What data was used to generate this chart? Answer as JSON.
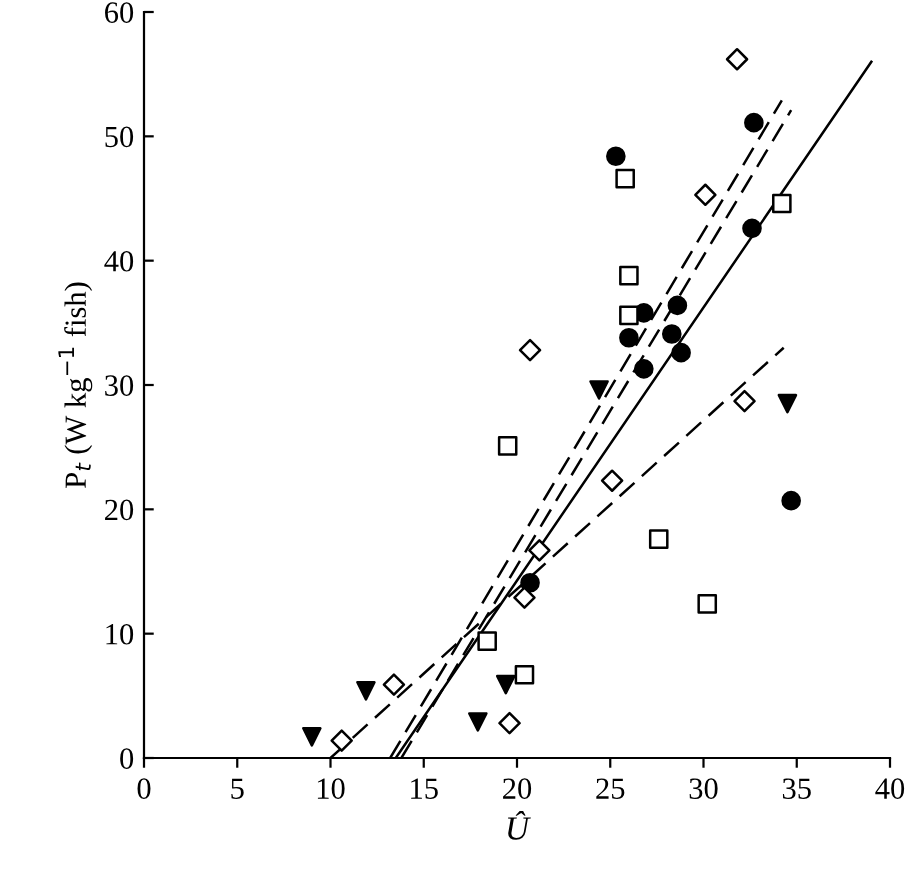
{
  "chart_data": {
    "type": "scatter",
    "xlabel": "Û",
    "ylabel": "P$_{t}$ (W kg$^{−1}$ fish)",
    "xlim": [
      0,
      40
    ],
    "ylim": [
      0,
      60
    ],
    "xticks": [
      0,
      5,
      10,
      15,
      20,
      25,
      30,
      35,
      40
    ],
    "yticks": [
      0,
      10,
      20,
      30,
      40,
      50,
      60
    ],
    "grid": false,
    "legend": false,
    "series": [
      {
        "marker": "circle",
        "color": "#000000",
        "x": [
          32.7,
          25.3,
          32.6,
          26.8,
          28.6,
          26.0,
          28.3,
          28.8,
          26.8,
          34.7,
          20.7
        ],
        "values": [
          51.1,
          48.4,
          42.6,
          35.8,
          36.4,
          33.8,
          34.1,
          32.6,
          31.3,
          20.7,
          14.1
        ]
      },
      {
        "marker": "square",
        "color": "#000000",
        "x": [
          25.8,
          34.2,
          26.0,
          26.0,
          19.5,
          27.6,
          30.2,
          18.4,
          20.4
        ],
        "values": [
          46.6,
          44.6,
          38.8,
          35.6,
          25.1,
          17.6,
          12.4,
          9.4,
          6.7
        ]
      },
      {
        "marker": "diamond",
        "color": "#000000",
        "x": [
          31.8,
          30.1,
          20.7,
          32.2,
          25.1,
          21.2,
          20.4,
          19.6,
          13.4,
          10.6
        ],
        "values": [
          56.2,
          45.3,
          32.8,
          28.7,
          22.3,
          16.7,
          12.9,
          2.8,
          5.9,
          1.4
        ]
      },
      {
        "marker": "triangle",
        "color": "#000000",
        "x": [
          24.4,
          34.5,
          19.4,
          17.9,
          11.9,
          9.0
        ],
        "values": [
          29.6,
          28.5,
          5.9,
          2.9,
          5.4,
          1.7
        ]
      },
      {
        "type": "line",
        "line_style": "solid",
        "color": "#000000",
        "x": [
          13.5,
          39.0
        ],
        "values": [
          0,
          56
        ]
      },
      {
        "type": "line",
        "line_style": "dashed",
        "color": "#000000",
        "x": [
          13.2,
          34.2
        ],
        "values": [
          0,
          52.9
        ]
      },
      {
        "type": "line",
        "line_style": "dashed",
        "color": "#000000",
        "x": [
          13.8,
          34.7
        ],
        "values": [
          0,
          52.1
        ]
      },
      {
        "type": "line",
        "line_style": "dashed",
        "color": "#000000",
        "x": [
          10.0,
          34.3
        ],
        "values": [
          0,
          33.0
        ]
      }
    ]
  }
}
